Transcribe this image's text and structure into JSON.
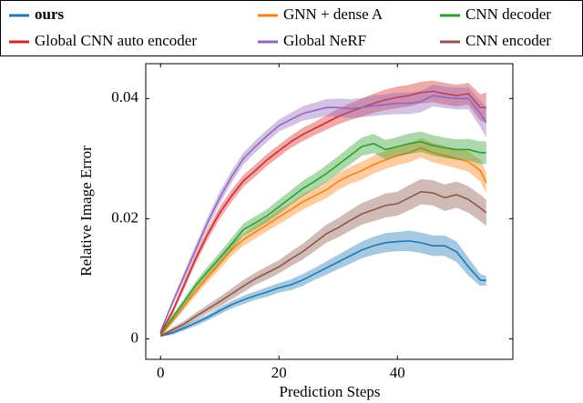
{
  "chart_data": {
    "type": "line",
    "x_label": "Prediction Steps",
    "y_label": "Relative Image Error",
    "x": [
      0,
      2,
      4,
      6,
      8,
      10,
      12,
      14,
      16,
      18,
      20,
      22,
      24,
      26,
      28,
      30,
      32,
      34,
      36,
      38,
      40,
      42,
      44,
      46,
      48,
      50,
      52,
      54,
      55
    ],
    "xlim": [
      -2.5,
      59.5
    ],
    "ylim": [
      -0.0034,
      0.0458
    ],
    "xticks": [
      0,
      20,
      40
    ],
    "yticks": [
      0,
      0.02,
      0.04
    ],
    "series": [
      {
        "name": "ours",
        "color": "#1f77b4",
        "values": [
          0.0005,
          0.001,
          0.0018,
          0.0027,
          0.0036,
          0.0047,
          0.0057,
          0.0065,
          0.0072,
          0.0078,
          0.0085,
          0.009,
          0.0098,
          0.0108,
          0.0118,
          0.0128,
          0.0138,
          0.0148,
          0.0155,
          0.016,
          0.0162,
          0.0163,
          0.016,
          0.0155,
          0.0155,
          0.0145,
          0.012,
          0.0098,
          0.0097
        ],
        "spread": [
          0.0002,
          0.0003,
          0.0004,
          0.0005,
          0.0005,
          0.0006,
          0.0006,
          0.0007,
          0.0007,
          0.0008,
          0.0008,
          0.0009,
          0.001,
          0.001,
          0.0011,
          0.0012,
          0.0013,
          0.0014,
          0.0015,
          0.0016,
          0.0016,
          0.0017,
          0.0017,
          0.0017,
          0.0017,
          0.0017,
          0.0015,
          0.001,
          0.0008
        ]
      },
      {
        "name": "GNN + dense A",
        "color": "#ff7f0e",
        "values": [
          0.0005,
          0.003,
          0.0055,
          0.008,
          0.0103,
          0.0125,
          0.0148,
          0.0165,
          0.0178,
          0.019,
          0.0203,
          0.0215,
          0.0228,
          0.0238,
          0.0248,
          0.0262,
          0.0272,
          0.028,
          0.029,
          0.0298,
          0.0305,
          0.031,
          0.0318,
          0.031,
          0.0305,
          0.03,
          0.0295,
          0.028,
          0.026
        ],
        "spread": [
          0.0002,
          0.0005,
          0.0006,
          0.0007,
          0.0008,
          0.0009,
          0.001,
          0.001,
          0.0011,
          0.0011,
          0.0012,
          0.0012,
          0.0013,
          0.0013,
          0.0014,
          0.0014,
          0.0014,
          0.0015,
          0.0015,
          0.0015,
          0.0016,
          0.0016,
          0.0016,
          0.0016,
          0.0016,
          0.0016,
          0.0017,
          0.0018,
          0.0018
        ]
      },
      {
        "name": "CNN decoder",
        "color": "#2ca02c",
        "values": [
          0.0008,
          0.0035,
          0.0062,
          0.009,
          0.0113,
          0.0135,
          0.0158,
          0.0182,
          0.0193,
          0.0205,
          0.022,
          0.0235,
          0.025,
          0.0262,
          0.0275,
          0.029,
          0.0305,
          0.032,
          0.0325,
          0.0315,
          0.032,
          0.0325,
          0.0328,
          0.0322,
          0.0318,
          0.0315,
          0.0315,
          0.031,
          0.031
        ],
        "spread": [
          0.0002,
          0.0005,
          0.0006,
          0.0007,
          0.0008,
          0.0009,
          0.001,
          0.001,
          0.0011,
          0.0011,
          0.0012,
          0.0012,
          0.0013,
          0.0013,
          0.0014,
          0.0014,
          0.0015,
          0.0015,
          0.0016,
          0.0016,
          0.0016,
          0.0017,
          0.0017,
          0.0017,
          0.0017,
          0.0017,
          0.0018,
          0.0019,
          0.0019
        ]
      },
      {
        "name": "Global CNN auto encoder",
        "color": "#d62728",
        "values": [
          0.001,
          0.0045,
          0.009,
          0.0135,
          0.0175,
          0.021,
          0.0238,
          0.0263,
          0.028,
          0.0298,
          0.0313,
          0.0328,
          0.034,
          0.035,
          0.036,
          0.037,
          0.0378,
          0.0385,
          0.0392,
          0.0398,
          0.0402,
          0.0405,
          0.041,
          0.0412,
          0.0408,
          0.0405,
          0.0408,
          0.0385,
          0.0385
        ],
        "spread": [
          0.0002,
          0.0005,
          0.0007,
          0.0008,
          0.0009,
          0.001,
          0.001,
          0.001,
          0.001,
          0.001,
          0.001,
          0.001,
          0.0011,
          0.0011,
          0.0012,
          0.0013,
          0.0014,
          0.0015,
          0.0016,
          0.0017,
          0.0018,
          0.0018,
          0.0018,
          0.0018,
          0.0018,
          0.0018,
          0.0018,
          0.0022,
          0.0025
        ]
      },
      {
        "name": "Global NeRF",
        "color": "#9467bd",
        "values": [
          0.0012,
          0.006,
          0.0105,
          0.015,
          0.0195,
          0.0235,
          0.027,
          0.03,
          0.032,
          0.0338,
          0.0355,
          0.0365,
          0.0375,
          0.038,
          0.0385,
          0.0385,
          0.0383,
          0.0385,
          0.0388,
          0.039,
          0.0392,
          0.0392,
          0.0395,
          0.0405,
          0.0402,
          0.04,
          0.04,
          0.0375,
          0.036
        ],
        "spread": [
          0.0002,
          0.0005,
          0.0007,
          0.0008,
          0.0009,
          0.001,
          0.001,
          0.001,
          0.001,
          0.001,
          0.001,
          0.0011,
          0.0012,
          0.0013,
          0.0014,
          0.0015,
          0.0016,
          0.0016,
          0.0017,
          0.0017,
          0.0018,
          0.0018,
          0.0018,
          0.0018,
          0.0018,
          0.0018,
          0.0018,
          0.0022,
          0.0025
        ]
      },
      {
        "name": "CNN encoder",
        "color": "#8c564b",
        "values": [
          0.0005,
          0.0015,
          0.0025,
          0.0038,
          0.005,
          0.0062,
          0.0075,
          0.0088,
          0.01,
          0.011,
          0.012,
          0.0133,
          0.0145,
          0.016,
          0.0175,
          0.0185,
          0.0197,
          0.0208,
          0.0215,
          0.0222,
          0.0225,
          0.0235,
          0.0245,
          0.0243,
          0.0235,
          0.024,
          0.0232,
          0.0218,
          0.021
        ],
        "spread": [
          0.0002,
          0.0004,
          0.0005,
          0.0006,
          0.0007,
          0.0008,
          0.0009,
          0.001,
          0.001,
          0.0011,
          0.0011,
          0.0012,
          0.0013,
          0.0014,
          0.0015,
          0.0016,
          0.0017,
          0.0018,
          0.0019,
          0.002,
          0.002,
          0.0021,
          0.0021,
          0.0021,
          0.0022,
          0.0022,
          0.0022,
          0.0022,
          0.0022
        ]
      }
    ]
  }
}
